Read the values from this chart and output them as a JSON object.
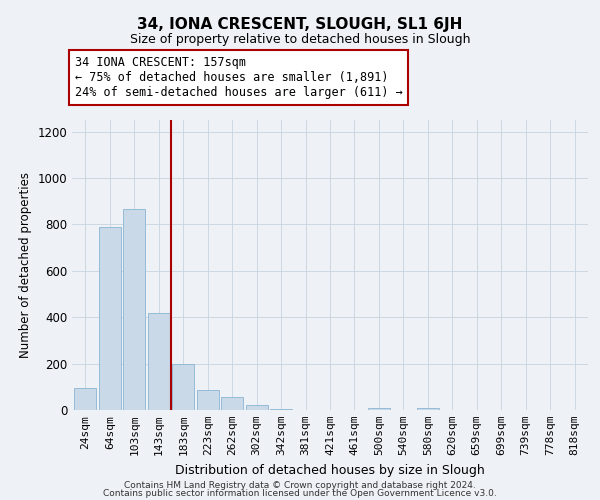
{
  "title": "34, IONA CRESCENT, SLOUGH, SL1 6JH",
  "subtitle": "Size of property relative to detached houses in Slough",
  "xlabel": "Distribution of detached houses by size in Slough",
  "ylabel": "Number of detached properties",
  "bar_labels": [
    "24sqm",
    "64sqm",
    "103sqm",
    "143sqm",
    "183sqm",
    "223sqm",
    "262sqm",
    "302sqm",
    "342sqm",
    "381sqm",
    "421sqm",
    "461sqm",
    "500sqm",
    "540sqm",
    "580sqm",
    "620sqm",
    "659sqm",
    "699sqm",
    "739sqm",
    "778sqm",
    "818sqm"
  ],
  "bar_values": [
    95,
    790,
    865,
    420,
    200,
    85,
    55,
    22,
    5,
    0,
    0,
    0,
    10,
    0,
    10,
    0,
    0,
    0,
    0,
    0,
    0
  ],
  "bar_color": "#c9d9e8",
  "bar_edge_color": "#8ab5d4",
  "vline_x_idx": 3,
  "vline_color": "#aa0000",
  "annotation_title": "34 IONA CRESCENT: 157sqm",
  "annotation_line1": "← 75% of detached houses are smaller (1,891)",
  "annotation_line2": "24% of semi-detached houses are larger (611) →",
  "annotation_box_color": "#ffffff",
  "annotation_box_edge": "#aa0000",
  "ylim": [
    0,
    1250
  ],
  "yticks": [
    0,
    200,
    400,
    600,
    800,
    1000,
    1200
  ],
  "footer1": "Contains HM Land Registry data © Crown copyright and database right 2024.",
  "footer2": "Contains public sector information licensed under the Open Government Licence v3.0.",
  "background_color": "#eef2f7",
  "plot_background": "#eef2f7",
  "grid_color": "#c8d4e0"
}
